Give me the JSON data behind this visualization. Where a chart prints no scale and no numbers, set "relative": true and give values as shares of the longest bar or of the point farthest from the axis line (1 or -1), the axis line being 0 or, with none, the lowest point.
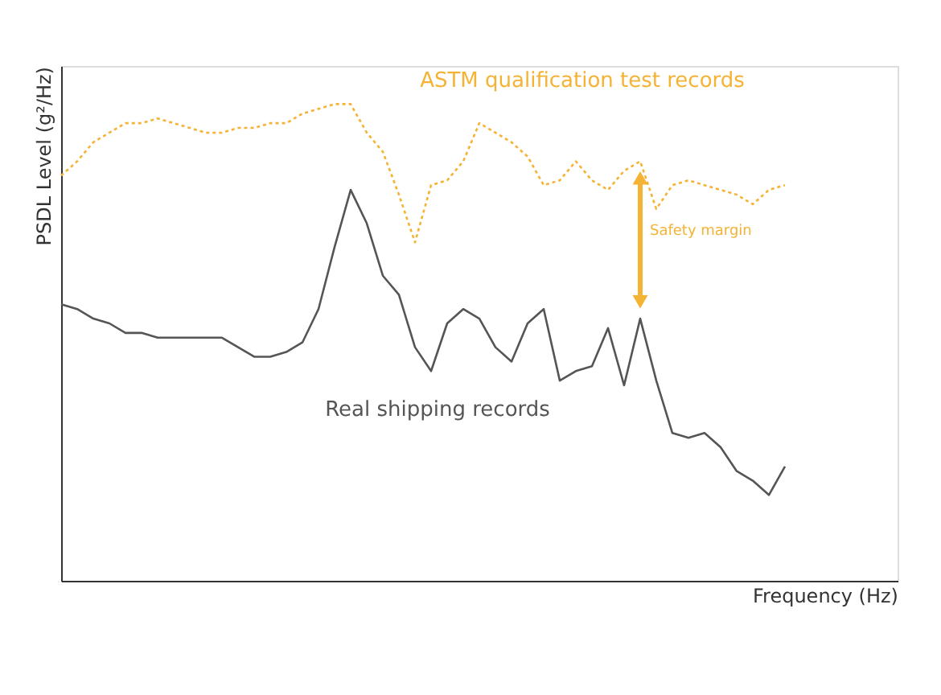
{
  "chart_data": {
    "type": "line",
    "relative": true,
    "xlabel": "Frequency (Hz)",
    "ylabel": "PSDL Level (g²/Hz)",
    "categories": [
      null,
      null,
      null,
      null,
      null,
      null,
      null,
      null,
      null,
      null,
      null,
      null,
      null,
      null,
      null,
      null,
      null,
      null,
      null,
      null,
      null,
      null,
      null,
      null,
      null,
      null,
      null,
      null,
      null,
      null,
      null,
      null,
      null,
      null,
      null,
      null,
      null,
      null,
      null,
      null,
      null,
      null,
      null,
      null,
      null,
      null
    ],
    "series": [
      {
        "name": "ASTM qualification test records",
        "color": "#f5b335",
        "line_style": "dotted",
        "values": [
          0.85,
          0.88,
          0.92,
          0.94,
          0.96,
          0.96,
          0.97,
          0.96,
          0.95,
          0.94,
          0.94,
          0.95,
          0.95,
          0.96,
          0.96,
          0.98,
          0.99,
          1.0,
          1.0,
          0.94,
          0.9,
          0.81,
          0.71,
          0.83,
          0.84,
          0.88,
          0.96,
          0.94,
          0.92,
          0.89,
          0.83,
          0.84,
          0.88,
          0.84,
          0.82,
          0.86,
          0.88,
          0.78,
          0.83,
          0.84,
          0.83,
          0.82,
          0.81,
          0.79,
          0.82,
          0.83
        ]
      },
      {
        "name": "Real shipping records",
        "color": "#555555",
        "line_style": "solid",
        "values": [
          0.58,
          0.57,
          0.55,
          0.54,
          0.52,
          0.52,
          0.51,
          0.51,
          0.51,
          0.51,
          0.51,
          0.49,
          0.47,
          0.47,
          0.48,
          0.5,
          0.57,
          0.7,
          0.82,
          0.75,
          0.64,
          0.6,
          0.49,
          0.44,
          0.54,
          0.57,
          0.55,
          0.49,
          0.46,
          0.54,
          0.57,
          0.42,
          0.44,
          0.45,
          0.53,
          0.41,
          0.55,
          0.42,
          0.31,
          0.3,
          0.31,
          0.28,
          0.23,
          0.21,
          0.18,
          0.24
        ]
      }
    ],
    "annotations": [
      "Safety margin"
    ],
    "legend": false,
    "tick_labels": false,
    "marker": "none"
  }
}
